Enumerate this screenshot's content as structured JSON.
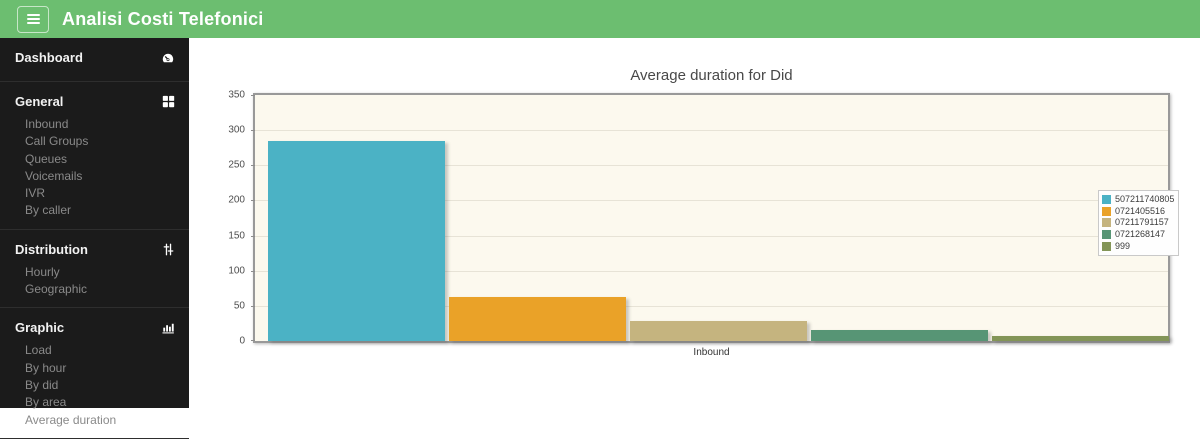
{
  "header": {
    "title": "Analisi Costi Telefonici",
    "menu_icon": "hamburger-icon",
    "bg_color": "#6cbe70"
  },
  "sidebar": {
    "bg_color": "#1b1b1b",
    "sections": [
      {
        "label": "Dashboard",
        "icon": "gauge-icon",
        "items": []
      },
      {
        "label": "General",
        "icon": "grid-icon",
        "items": [
          "Inbound",
          "Call Groups",
          "Queues",
          "Voicemails",
          "IVR",
          "By caller"
        ]
      },
      {
        "label": "Distribution",
        "icon": "sliders-icon",
        "items": [
          "Hourly",
          "Geographic"
        ]
      },
      {
        "label": "Graphic",
        "icon": "bar-chart-icon",
        "items": [
          "Load",
          "By hour",
          "By did",
          "By area",
          "Average duration"
        ]
      }
    ]
  },
  "chart_data": {
    "type": "bar",
    "title": "Average duration for Did",
    "categories": [
      "Inbound"
    ],
    "xlabel": "Inbound",
    "ylabel": "",
    "ylim": [
      0,
      350
    ],
    "yticks": [
      0,
      50,
      100,
      150,
      200,
      250,
      300,
      350
    ],
    "grid": true,
    "legend_position": "middle-right",
    "plot_bg": "#fcf9ee",
    "series": [
      {
        "name": "507211740805",
        "color": "#4bb2c5",
        "values": [
          285
        ]
      },
      {
        "name": "0721405516",
        "color": "#eaa228",
        "values": [
          63
        ]
      },
      {
        "name": "07211791157",
        "color": "#c5b47f",
        "values": [
          28
        ]
      },
      {
        "name": "0721268147",
        "color": "#579575",
        "values": [
          16
        ]
      },
      {
        "name": "999",
        "color": "#839557",
        "values": [
          7
        ]
      }
    ]
  }
}
